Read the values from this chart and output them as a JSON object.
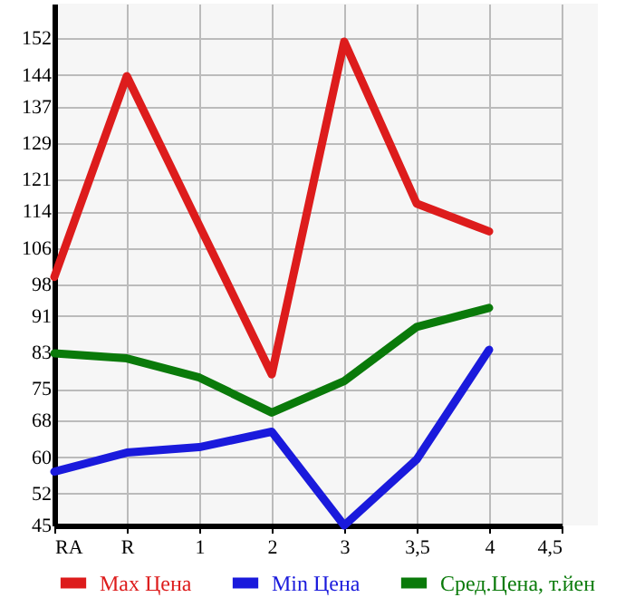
{
  "chart_data": {
    "type": "line",
    "categories": [
      "RA",
      "R",
      "1",
      "2",
      "3",
      "3,5",
      "4",
      "4,5"
    ],
    "series": [
      {
        "name": "Max Цена",
        "color": "#dd1c1c",
        "values": [
          99.6,
          143.7,
          110.9,
          78.2,
          151.3,
          115.7,
          109.6,
          null
        ]
      },
      {
        "name": "Min Цена",
        "color": "#1a1adc",
        "values": [
          56.8,
          61.0,
          62.2,
          65.6,
          45,
          59.5,
          83.6,
          null
        ]
      },
      {
        "name": "Сред.Цена, т.йен",
        "color": "#0a7a0a",
        "values": [
          82.8,
          81.7,
          77.5,
          69.8,
          76.7,
          88.6,
          92.8,
          null
        ]
      }
    ],
    "ylim": [
      45,
      159.64
    ],
    "yticks": [
      45,
      52,
      60,
      68,
      75,
      83,
      91,
      98,
      106,
      114,
      121,
      129,
      137,
      144,
      152
    ],
    "grid": true,
    "legend": "bottom",
    "marker": "none",
    "line_style": "solid"
  }
}
